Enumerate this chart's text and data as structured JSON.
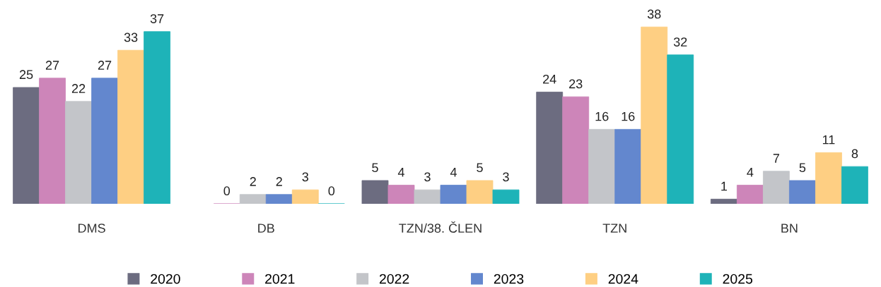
{
  "chart_data": {
    "type": "bar",
    "categories": [
      "DMS",
      "DB",
      "TZN/38. ČLEN",
      "TZN",
      "BN"
    ],
    "series": [
      {
        "name": "2020",
        "color": "#6c6c80",
        "values": [
          25,
          null,
          5,
          24,
          1
        ]
      },
      {
        "name": "2021",
        "color": "#cd85b9",
        "values": [
          27,
          0,
          4,
          23,
          4
        ]
      },
      {
        "name": "2022",
        "color": "#c3c5c9",
        "values": [
          22,
          2,
          3,
          16,
          7
        ]
      },
      {
        "name": "2023",
        "color": "#6387ce",
        "values": [
          27,
          2,
          4,
          16,
          5
        ]
      },
      {
        "name": "2024",
        "color": "#fecf83",
        "values": [
          33,
          3,
          5,
          38,
          11
        ]
      },
      {
        "name": "2025",
        "color": "#1eb3b8",
        "values": [
          37,
          0,
          3,
          32,
          8
        ]
      }
    ],
    "data_labels": true,
    "legend": "bottom",
    "grid": false
  }
}
